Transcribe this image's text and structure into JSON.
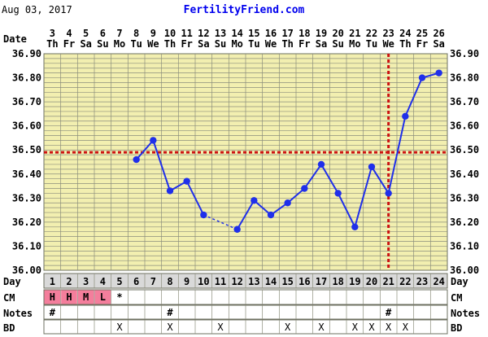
{
  "header": {
    "date": "Aug 03, 2017",
    "brand": "FertilityFriend.com"
  },
  "labels": {
    "date_left": "Date",
    "day_left": "Day",
    "day_right": "Day",
    "cm_left": "CM",
    "cm_right": "CM",
    "notes_left": "Notes",
    "notes_right": "Notes",
    "bd_left": "BD",
    "bd_right": "BD"
  },
  "colors": {
    "plot_bg": "#F2EFB0",
    "row_bg": "#FFFFFF",
    "day_row_bg": "#D9D9D9",
    "cm_fill": "#F47E9C",
    "grid": "#8B8E7C",
    "line": "#1F2FEA",
    "coverline": "#CC1111",
    "ovulation": "#CC1111"
  },
  "chart_data": {
    "type": "line",
    "x": [
      1,
      2,
      3,
      4,
      5,
      6,
      7,
      8,
      9,
      10,
      11,
      12,
      13,
      14,
      15,
      16,
      17,
      18,
      19,
      20,
      21,
      22,
      23,
      24
    ],
    "date_numbers": [
      "3",
      "4",
      "5",
      "6",
      "7",
      "8",
      "9",
      "10",
      "11",
      "12",
      "13",
      "14",
      "15",
      "16",
      "17",
      "18",
      "19",
      "20",
      "21",
      "22",
      "23",
      "24",
      "25",
      "26"
    ],
    "weekdays": [
      "Th",
      "Fr",
      "Sa",
      "Su",
      "Mo",
      "Tu",
      "We",
      "Th",
      "Fr",
      "Sa",
      "Su",
      "Mo",
      "Tu",
      "We",
      "Th",
      "Fr",
      "Sa",
      "Su",
      "Mo",
      "Tu",
      "We",
      "Th",
      "Fr",
      "Sa"
    ],
    "series": [
      {
        "values": [
          null,
          null,
          null,
          null,
          null,
          36.46,
          36.54,
          36.33,
          36.37,
          36.23,
          null,
          36.17,
          36.29,
          36.23,
          36.28,
          36.34,
          36.44,
          36.32,
          36.18,
          36.43,
          36.32,
          36.64,
          36.8,
          36.82
        ]
      }
    ],
    "ylim": [
      36.0,
      36.9
    ],
    "yticks": [
      "36.90",
      "36.80",
      "36.70",
      "36.60",
      "36.50",
      "36.40",
      "36.30",
      "36.20",
      "36.10",
      "36.00"
    ],
    "coverline": 36.49,
    "ovulation_day": 21,
    "grid": true,
    "rows": {
      "cm": [
        "H",
        "H",
        "M",
        "L",
        "*",
        "",
        "",
        "",
        "",
        "",
        "",
        "",
        "",
        "",
        "",
        "",
        "",
        "",
        "",
        "",
        "",
        "",
        "",
        ""
      ],
      "cm_colored": [
        true,
        true,
        true,
        true,
        false,
        false,
        false,
        false,
        false,
        false,
        false,
        false,
        false,
        false,
        false,
        false,
        false,
        false,
        false,
        false,
        false,
        false,
        false,
        false
      ],
      "notes": [
        "#",
        "",
        "",
        "",
        "",
        "",
        "",
        "#",
        "",
        "",
        "",
        "",
        "",
        "",
        "",
        "",
        "",
        "",
        "",
        "",
        "#",
        "",
        "",
        ""
      ],
      "bd": [
        "",
        "",
        "",
        "",
        "X",
        "",
        "",
        "X",
        "",
        "",
        "X",
        "",
        "",
        "",
        "X",
        "",
        "X",
        "",
        "X",
        "X",
        "X",
        "X",
        "",
        ""
      ]
    }
  }
}
